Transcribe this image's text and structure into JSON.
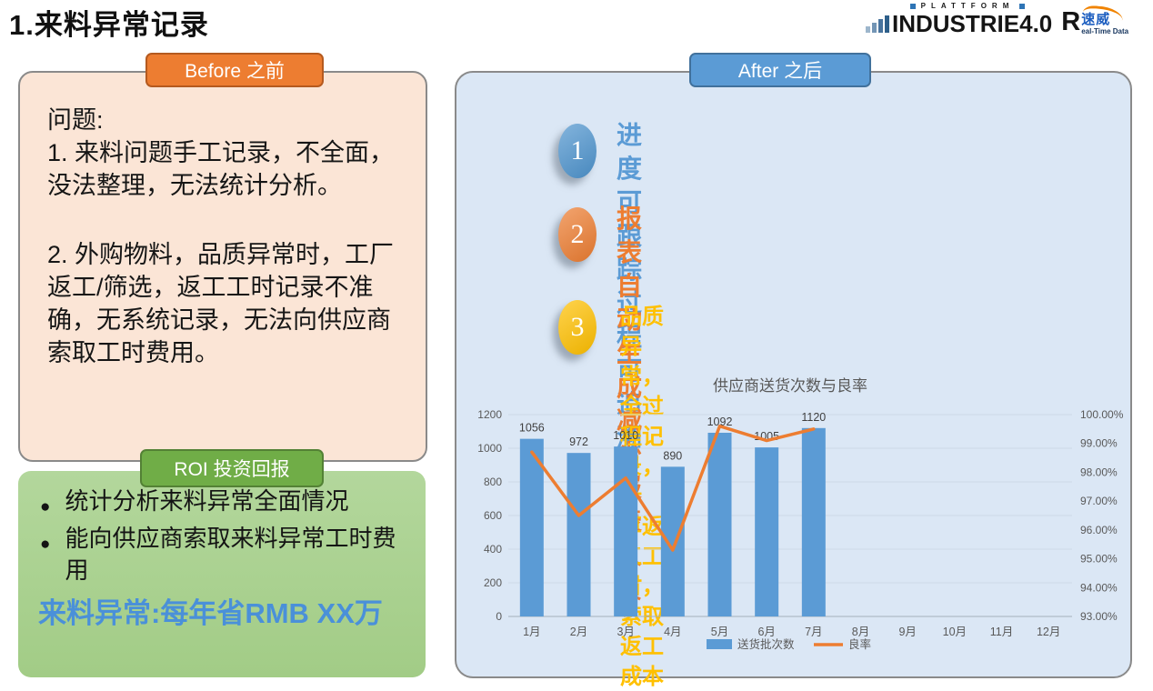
{
  "page": {
    "title": "1.来料异常记录"
  },
  "logo": {
    "plattform": "PLATTFORM",
    "industrie": "INDUSTRIE",
    "version": "4.0",
    "r_letter": "R",
    "brand_cn": "速威",
    "brand_sub": "eal-Time Data"
  },
  "colors": {
    "accent_blue": "#5B9BD5",
    "accent_orange": "#ED7D31",
    "accent_gold": "#FFC000",
    "accent_green": "#70AD47",
    "panel_peach": "#FBE5D6",
    "panel_light_green": "#A9D18E",
    "panel_light_blue": "#DBE7F5",
    "highlight_blue": "#4A90D9"
  },
  "before": {
    "tab": "Before 之前",
    "problem_title": "问题:",
    "items": [
      "1. 来料问题手工记录，不全面，没法整理，无法统计分析。",
      "2. 外购物料，品质异常时，工厂返工/筛选，返工工时记录不准确，无系统记录，无法向供应商索取工时费用。"
    ]
  },
  "roi": {
    "tab": "ROI 投资回报",
    "bullets": [
      "统计分析来料异常全面情况",
      "能向供应商索取来料异常工时费用"
    ],
    "bullet_glyph": "●",
    "highlight": "来料异常:每年省RMB XX万"
  },
  "after": {
    "tab": "After 之后",
    "points": [
      {
        "num": "1",
        "circle_color": "#4e94ce",
        "text_color": "#5b9bd5",
        "lines": [
          "进度可跟踪",
          "过程可追溯"
        ]
      },
      {
        "num": "2",
        "circle_color": "#ed7d31",
        "text_color": "#ed7d31",
        "lines": [
          "报表自动生成",
          "减少报表人员"
        ]
      },
      {
        "num": "3",
        "circle_color": "#ffc000",
        "text_color": "#ffc000",
        "lines": [
          "品质异常，全过程记录，计",
          "算返工工时，索取返工成本"
        ]
      }
    ]
  },
  "chart_data": {
    "type": "bar",
    "subtype": "combo-bar-line-dual-axis",
    "title": "供应商送货次数与良率",
    "categories": [
      "1月",
      "2月",
      "3月",
      "4月",
      "5月",
      "6月",
      "7月",
      "8月",
      "9月",
      "10月",
      "11月",
      "12月"
    ],
    "series": [
      {
        "name": "送货批次数",
        "type": "bar",
        "color": "#5B9BD5",
        "axis": "left",
        "values": [
          1056,
          972,
          1010,
          890,
          1092,
          1005,
          1120,
          null,
          null,
          null,
          null,
          null
        ]
      },
      {
        "name": "良率",
        "type": "line",
        "color": "#ED7D31",
        "axis": "right",
        "values": [
          98.7,
          96.5,
          97.8,
          95.3,
          99.6,
          99.1,
          99.5,
          null,
          null,
          null,
          null,
          null
        ]
      }
    ],
    "left_axis": {
      "min": 0,
      "max": 1200,
      "step": 200,
      "ticks": [
        "1200",
        "1000",
        "800",
        "600",
        "400",
        "200",
        "0"
      ]
    },
    "right_axis": {
      "min": 93,
      "max": 100,
      "ticks": [
        "100.00%",
        "99.00%",
        "98.00%",
        "97.00%",
        "96.00%",
        "95.00%",
        "94.00%",
        "93.00%"
      ]
    },
    "grid": true,
    "legend_position": "bottom",
    "data_labels_on_bars": true,
    "label_color": "#595959",
    "grid_color": "#cdd9e7",
    "axis_line_color": "#a6b0ba"
  }
}
